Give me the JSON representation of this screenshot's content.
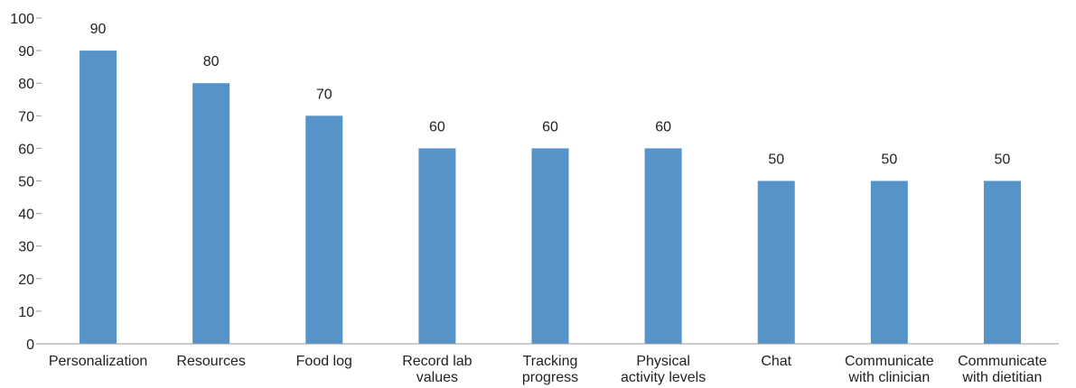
{
  "chart_data": {
    "type": "bar",
    "title": "",
    "xlabel": "",
    "ylabel": "",
    "categories": [
      [
        "Personalization"
      ],
      [
        "Resources"
      ],
      [
        "Food log"
      ],
      [
        "Record lab",
        "values"
      ],
      [
        "Tracking",
        "progress"
      ],
      [
        "Physical",
        "activity levels"
      ],
      [
        "Chat"
      ],
      [
        "Communicate",
        "with clinician"
      ],
      [
        "Communicate",
        "with dietitian"
      ]
    ],
    "values": [
      90,
      80,
      70,
      60,
      60,
      60,
      50,
      50,
      50
    ],
    "data_labels": [
      "90",
      "80",
      "70",
      "60",
      "60",
      "60",
      "50",
      "50",
      "50"
    ],
    "ylim": [
      0,
      100
    ],
    "yticks": [
      0,
      10,
      20,
      30,
      40,
      50,
      60,
      70,
      80,
      90,
      100
    ],
    "grid": false,
    "legend": "none",
    "colors": {
      "bar": "#5593c8",
      "axis": "#9a9a9a",
      "text": "#222222"
    }
  }
}
